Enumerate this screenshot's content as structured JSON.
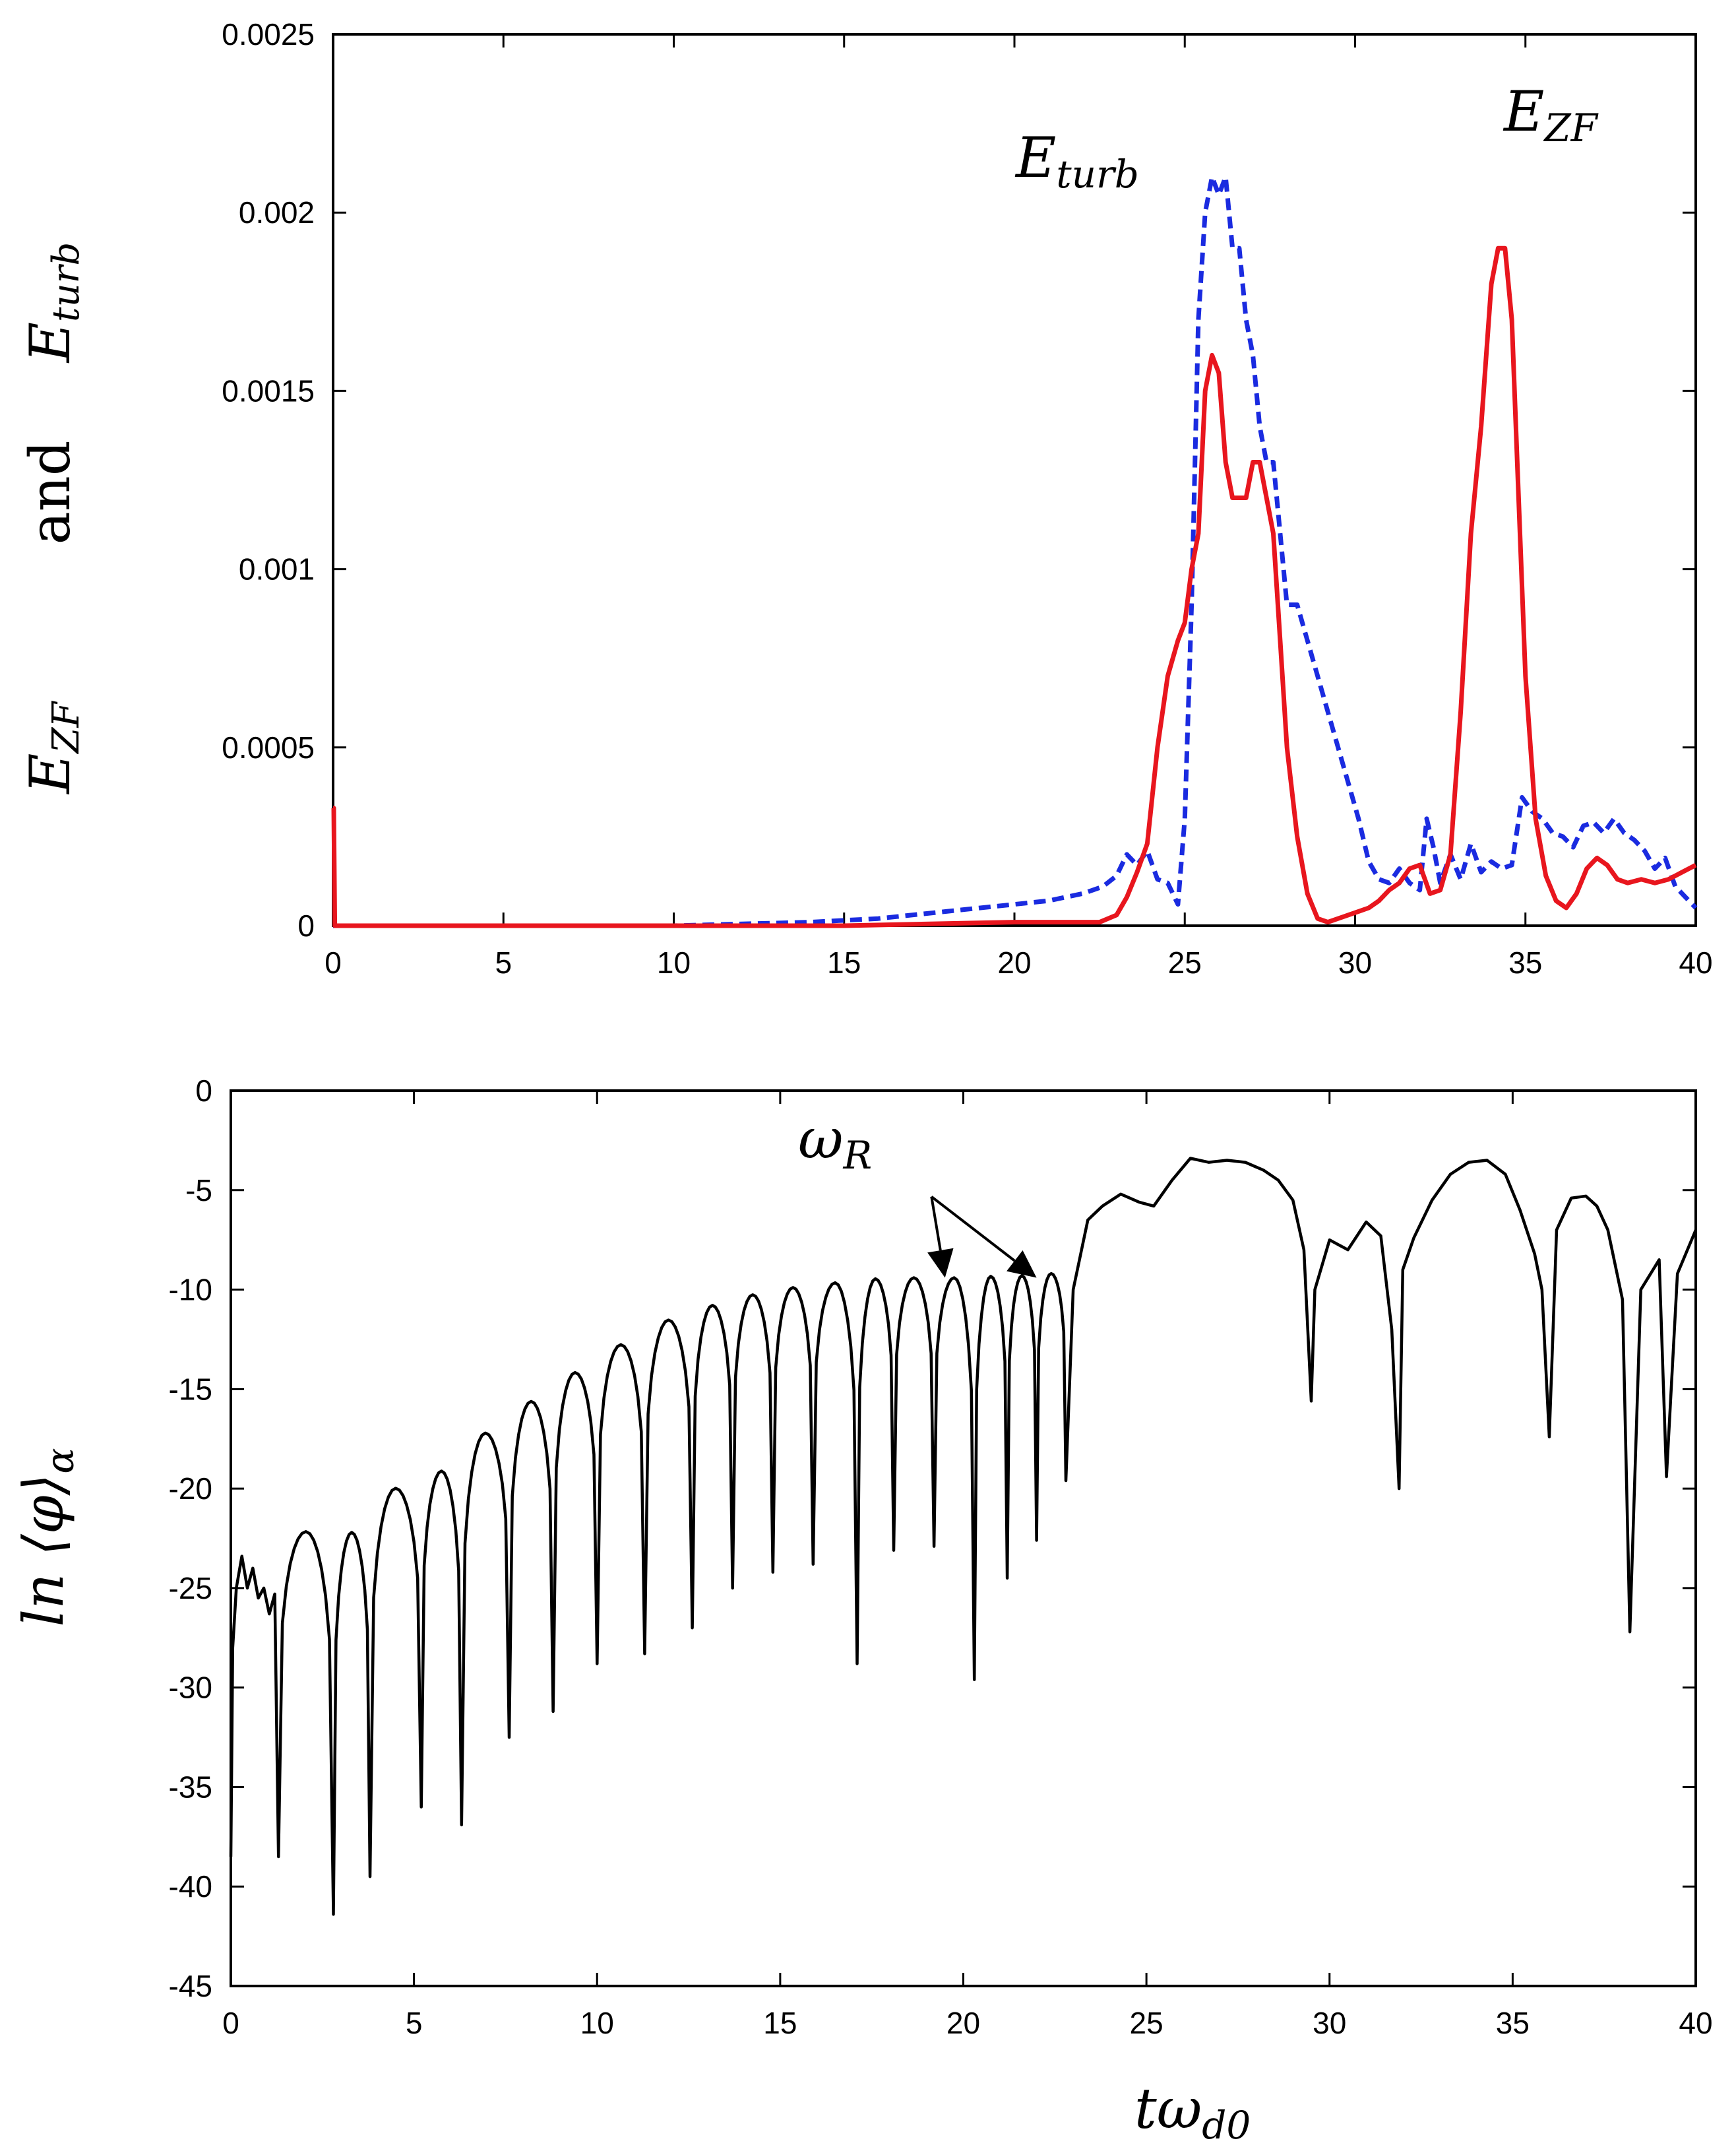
{
  "chart_data": [
    {
      "type": "line",
      "panel": "top",
      "title": "",
      "ylabel_parts": [
        {
          "base": "E",
          "sub": "ZF"
        },
        {
          "text": "and"
        },
        {
          "base": "E",
          "sub": "turb"
        }
      ],
      "xlabel": "",
      "xlim": [
        0,
        40
      ],
      "ylim": [
        0,
        0.0025
      ],
      "x_ticks": [
        "0",
        "5",
        "10",
        "15",
        "20",
        "25",
        "30",
        "35",
        "40"
      ],
      "y_ticks": [
        "0",
        "0.0005",
        "0.001",
        "0.0015",
        "0.002",
        "0.0025"
      ],
      "grid": false,
      "annotations": [
        {
          "base": "E",
          "sub": "turb",
          "x": 21.3,
          "y": 0.00215
        },
        {
          "base": "E",
          "sub": "ZF",
          "x": 34.5,
          "y": 0.00225
        }
      ],
      "series": [
        {
          "name": "E_turb",
          "color": "#1a2be0",
          "style": "dashed",
          "x": [
            0,
            5,
            10,
            14,
            16,
            18,
            20,
            21,
            22,
            22.6,
            23,
            23.3,
            23.6,
            23.9,
            24.2,
            24.5,
            24.8,
            25.0,
            25.2,
            25.4,
            25.6,
            25.8,
            26.0,
            26.2,
            26.4,
            26.6,
            26.8,
            27.0,
            27.2,
            27.4,
            27.6,
            27.8,
            28.0,
            28.3,
            28.6,
            28.9,
            29.2,
            29.5,
            29.8,
            30.1,
            30.4,
            30.7,
            31.0,
            31.3,
            31.6,
            31.9,
            32.1,
            32.3,
            32.5,
            32.8,
            33.1,
            33.4,
            33.7,
            34.0,
            34.3,
            34.6,
            34.9,
            35.2,
            35.5,
            35.8,
            36.1,
            36.4,
            36.7,
            37.0,
            37.3,
            37.6,
            37.9,
            38.2,
            38.5,
            38.8,
            39.1,
            39.4,
            39.7,
            40.0
          ],
          "values": [
            0,
            0,
            0,
            1e-05,
            2e-05,
            4e-05,
            6e-05,
            7e-05,
            9e-05,
            0.00011,
            0.00014,
            0.0002,
            0.00017,
            0.00021,
            0.00013,
            0.00012,
            6e-05,
            0.0003,
            0.0009,
            0.0017,
            0.002,
            0.0021,
            0.00205,
            0.0021,
            0.0019,
            0.0019,
            0.0017,
            0.0016,
            0.0014,
            0.0013,
            0.0013,
            0.0011,
            0.0009,
            0.0009,
            0.0008,
            0.0007,
            0.0006,
            0.0005,
            0.0004,
            0.0003,
            0.00018,
            0.00013,
            0.00012,
            0.00016,
            0.00012,
            0.0001,
            0.0003,
            0.00022,
            0.00012,
            0.0002,
            0.00013,
            0.00023,
            0.00015,
            0.00018,
            0.00016,
            0.00017,
            0.00036,
            0.00032,
            0.0003,
            0.00026,
            0.00025,
            0.00022,
            0.00028,
            0.00029,
            0.00026,
            0.0003,
            0.00026,
            0.00024,
            0.00021,
            0.00016,
            0.00019,
            0.00011,
            8e-05,
            5e-05
          ]
        },
        {
          "name": "E_ZF",
          "color": "#e8161e",
          "style": "solid",
          "x": [
            0,
            0.02,
            0.05,
            5,
            10,
            15,
            20,
            22.5,
            23,
            23.3,
            23.6,
            23.9,
            24.2,
            24.5,
            24.8,
            25.0,
            25.2,
            25.4,
            25.6,
            25.8,
            26.0,
            26.2,
            26.4,
            26.6,
            26.8,
            27.0,
            27.2,
            27.4,
            27.6,
            27.8,
            28.0,
            28.3,
            28.6,
            28.9,
            29.2,
            29.5,
            29.8,
            30.1,
            30.4,
            30.7,
            31.0,
            31.3,
            31.6,
            31.9,
            32.2,
            32.5,
            32.8,
            33.1,
            33.4,
            33.7,
            34.0,
            34.2,
            34.4,
            34.6,
            34.8,
            35.0,
            35.3,
            35.6,
            35.9,
            36.2,
            36.5,
            36.8,
            37.1,
            37.4,
            37.7,
            38.0,
            38.4,
            38.8,
            39.2,
            39.6,
            40.0
          ],
          "values": [
            0.00033,
            0.00033,
            0,
            0,
            0,
            0,
            1e-05,
            1e-05,
            3e-05,
            8e-05,
            0.00015,
            0.00023,
            0.0005,
            0.0007,
            0.0008,
            0.00085,
            0.001,
            0.0011,
            0.0015,
            0.0016,
            0.00155,
            0.0013,
            0.0012,
            0.0012,
            0.0012,
            0.0013,
            0.0013,
            0.0012,
            0.0011,
            0.0008,
            0.0005,
            0.00025,
            9e-05,
            2e-05,
            1e-05,
            2e-05,
            3e-05,
            4e-05,
            5e-05,
            7e-05,
            0.0001,
            0.00012,
            0.00016,
            0.00017,
            9e-05,
            0.0001,
            0.0002,
            0.0006,
            0.0011,
            0.0014,
            0.0018,
            0.0019,
            0.0019,
            0.0017,
            0.0012,
            0.0007,
            0.0003,
            0.00014,
            7e-05,
            5e-05,
            9e-05,
            0.00016,
            0.00019,
            0.00017,
            0.00013,
            0.00012,
            0.00013,
            0.00012,
            0.00013,
            0.00015,
            0.00017
          ]
        }
      ]
    },
    {
      "type": "line",
      "panel": "bottom",
      "title": "",
      "ylabel_parts": [
        {
          "text": "ln ⟨φ⟩"
        },
        {
          "sub": "α"
        }
      ],
      "xlabel_parts": {
        "base": "tω",
        "sub": "d0"
      },
      "xlim": [
        0,
        40
      ],
      "ylim": [
        -45,
        0
      ],
      "x_ticks": [
        "0",
        "5",
        "10",
        "15",
        "20",
        "25",
        "30",
        "35",
        "40"
      ],
      "y_ticks": [
        "0",
        "-5",
        "-10",
        "-15",
        "-20",
        "-25",
        "-30",
        "-35",
        "-40",
        "-45"
      ],
      "grid": false,
      "annotation": {
        "base": "ω",
        "sub": "R",
        "x": 16.7,
        "y": -4.5,
        "arrow_targets": [
          [
            19.5,
            -9.4
          ],
          [
            22.0,
            -9.4
          ]
        ]
      },
      "series": [
        {
          "name": "ln_phi",
          "color": "#000000",
          "style": "solid",
          "envelope_x": [
            0.8,
            2.2,
            3.3,
            4.6,
            5.7,
            6.8,
            7.9,
            9.0,
            10.2,
            11.3,
            12.4,
            13.5,
            14.6,
            15.7,
            16.8,
            17.9,
            18.9,
            20.0,
            21.1,
            22.2,
            23.3
          ],
          "envelope_y": [
            -23.5,
            -22,
            -22.2,
            -19.8,
            -19.2,
            -17.4,
            -16.0,
            -14.6,
            -13.3,
            -12.0,
            -11.2,
            -10.6,
            -10.1,
            -9.8,
            -9.6,
            -9.4,
            -9.4,
            -9.4,
            -9.3,
            -9.3,
            -8.7
          ],
          "dips_x": [
            1.3,
            2.8,
            3.8,
            5.2,
            6.3,
            7.6,
            8.8,
            10.0,
            11.3,
            12.6,
            13.7,
            14.8,
            15.9,
            17.1,
            18.1,
            19.2,
            20.3,
            21.2,
            22.0,
            22.8
          ],
          "dips_y": [
            -38.5,
            -41.4,
            -39.5,
            -36,
            -36.9,
            -32.5,
            -31.2,
            -28.8,
            -28.3,
            -27,
            -25,
            -24.2,
            -23.8,
            -28.8,
            -23.1,
            -22.9,
            -29.6,
            -24.5,
            -22.6,
            -19.6
          ],
          "late_x": [
            23.0,
            23.4,
            23.8,
            24.3,
            24.8,
            25.2,
            25.7,
            26.2,
            26.7,
            27.2,
            27.7,
            28.2,
            28.6,
            29.0,
            29.3,
            29.5,
            29.6,
            30.0,
            30.5,
            31.0,
            31.4,
            31.7,
            31.9,
            32.0,
            32.3,
            32.8,
            33.3,
            33.8,
            34.3,
            34.8,
            35.2,
            35.6,
            35.8,
            36.0,
            36.2,
            36.6,
            37.0,
            37.3,
            37.6,
            38.0,
            38.2,
            38.5,
            39.0,
            39.2,
            39.5,
            40.0
          ],
          "late_y": [
            -10,
            -6.5,
            -5.8,
            -5.2,
            -5.6,
            -5.8,
            -4.5,
            -3.4,
            -3.6,
            -3.5,
            -3.6,
            -4.0,
            -4.5,
            -5.5,
            -8,
            -15.6,
            -10,
            -7.5,
            -8.0,
            -6.6,
            -7.3,
            -12,
            -20,
            -9,
            -7.4,
            -5.5,
            -4.2,
            -3.6,
            -3.5,
            -4.2,
            -6.0,
            -8.2,
            -10,
            -17.4,
            -7.0,
            -5.4,
            -5.3,
            -5.8,
            -7.0,
            -10.5,
            -27.2,
            -10,
            -8.5,
            -19.4,
            -9.2,
            -7.0
          ]
        }
      ]
    }
  ]
}
